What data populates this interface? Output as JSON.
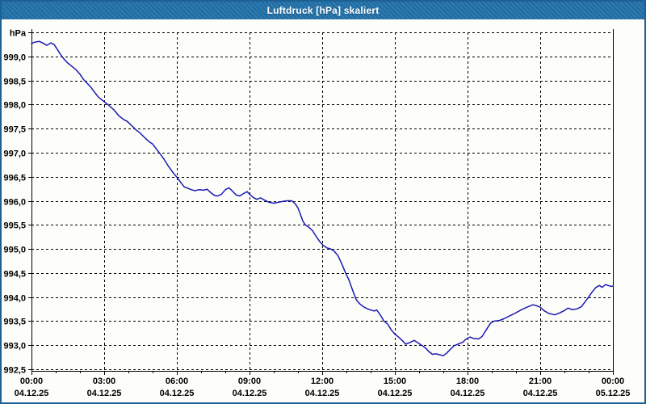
{
  "window": {
    "title": "Luftdruck [hPa] skaliert"
  },
  "colors": {
    "window_border": "#1d6094",
    "titlebar_bg": "#1f6fa8",
    "titlebar_text": "#ffffff",
    "plot_background": "#fdfdfa",
    "grid": "#000000",
    "series": "#1a1ab3"
  },
  "chart_data": {
    "type": "line",
    "title": "Luftdruck [hPa] skaliert",
    "unit_label": "hPa",
    "ylabel": "hPa",
    "xlabel": "",
    "ylim": [
      992.5,
      999.5
    ],
    "y_tick_step": 0.5,
    "y_tick_labels": [
      "hPa",
      "999,0",
      "998,5",
      "998,0",
      "997,5",
      "997,0",
      "996,5",
      "996,0",
      "995,5",
      "995,0",
      "994,5",
      "994,0",
      "993,5",
      "993,0",
      "992,5"
    ],
    "x_range_hours": [
      0,
      24
    ],
    "x_major_step_hours": 3,
    "x_minor_step_hours": 1,
    "grid": "dashed",
    "legend_position": "none",
    "x_ticks": [
      {
        "time": "00:00",
        "date": "04.12.25"
      },
      {
        "time": "03:00",
        "date": "04.12.25"
      },
      {
        "time": "06:00",
        "date": "04.12.25"
      },
      {
        "time": "09:00",
        "date": "04.12.25"
      },
      {
        "time": "12:00",
        "date": "04.12.25"
      },
      {
        "time": "15:00",
        "date": "04.12.25"
      },
      {
        "time": "18:00",
        "date": "04.12.25"
      },
      {
        "time": "21:00",
        "date": "04.12.25"
      },
      {
        "time": "00:00",
        "date": "05.12.25"
      }
    ],
    "points": [
      [
        0.0,
        999.27
      ],
      [
        0.17,
        999.3
      ],
      [
        0.33,
        999.31
      ],
      [
        0.5,
        999.27
      ],
      [
        0.63,
        999.23
      ],
      [
        0.8,
        999.28
      ],
      [
        0.93,
        999.25
      ],
      [
        1.05,
        999.16
      ],
      [
        1.2,
        999.04
      ],
      [
        1.35,
        998.94
      ],
      [
        1.5,
        998.86
      ],
      [
        1.65,
        998.8
      ],
      [
        1.8,
        998.74
      ],
      [
        2.0,
        998.63
      ],
      [
        2.15,
        998.52
      ],
      [
        2.3,
        998.44
      ],
      [
        2.45,
        998.36
      ],
      [
        2.6,
        998.26
      ],
      [
        2.75,
        998.16
      ],
      [
        2.9,
        998.1
      ],
      [
        3.05,
        998.04
      ],
      [
        3.2,
        997.98
      ],
      [
        3.4,
        997.89
      ],
      [
        3.6,
        997.77
      ],
      [
        3.8,
        997.69
      ],
      [
        3.95,
        997.65
      ],
      [
        4.1,
        997.58
      ],
      [
        4.3,
        997.48
      ],
      [
        4.5,
        997.4
      ],
      [
        4.7,
        997.3
      ],
      [
        4.85,
        997.23
      ],
      [
        5.0,
        997.18
      ],
      [
        5.15,
        997.08
      ],
      [
        5.3,
        996.98
      ],
      [
        5.45,
        996.88
      ],
      [
        5.65,
        996.72
      ],
      [
        5.85,
        996.58
      ],
      [
        6.0,
        996.49
      ],
      [
        6.15,
        996.39
      ],
      [
        6.3,
        996.29
      ],
      [
        6.45,
        996.26
      ],
      [
        6.6,
        996.23
      ],
      [
        6.75,
        996.21
      ],
      [
        6.9,
        996.23
      ],
      [
        7.1,
        996.22
      ],
      [
        7.25,
        996.24
      ],
      [
        7.4,
        996.17
      ],
      [
        7.55,
        996.11
      ],
      [
        7.7,
        996.1
      ],
      [
        7.85,
        996.14
      ],
      [
        8.0,
        996.23
      ],
      [
        8.15,
        996.27
      ],
      [
        8.3,
        996.2
      ],
      [
        8.45,
        996.12
      ],
      [
        8.6,
        996.1
      ],
      [
        8.75,
        996.15
      ],
      [
        8.9,
        996.19
      ],
      [
        9.0,
        996.14
      ],
      [
        9.15,
        996.07
      ],
      [
        9.3,
        996.03
      ],
      [
        9.45,
        996.06
      ],
      [
        9.6,
        996.02
      ],
      [
        9.8,
        995.97
      ],
      [
        10.0,
        995.95
      ],
      [
        10.2,
        995.97
      ],
      [
        10.4,
        995.99
      ],
      [
        10.55,
        996.0
      ],
      [
        10.75,
        996.0
      ],
      [
        10.9,
        995.93
      ],
      [
        11.0,
        995.85
      ],
      [
        11.1,
        995.72
      ],
      [
        11.2,
        995.58
      ],
      [
        11.3,
        995.5
      ],
      [
        11.45,
        995.45
      ],
      [
        11.6,
        995.38
      ],
      [
        11.75,
        995.26
      ],
      [
        11.9,
        995.15
      ],
      [
        12.05,
        995.07
      ],
      [
        12.2,
        995.02
      ],
      [
        12.35,
        995.0
      ],
      [
        12.5,
        994.95
      ],
      [
        12.65,
        994.86
      ],
      [
        12.8,
        994.7
      ],
      [
        12.95,
        994.52
      ],
      [
        13.1,
        994.36
      ],
      [
        13.25,
        994.15
      ],
      [
        13.4,
        993.95
      ],
      [
        13.55,
        993.86
      ],
      [
        13.7,
        993.8
      ],
      [
        13.85,
        993.76
      ],
      [
        14.0,
        993.73
      ],
      [
        14.15,
        993.71
      ],
      [
        14.25,
        993.73
      ],
      [
        14.4,
        993.63
      ],
      [
        14.55,
        993.5
      ],
      [
        14.7,
        993.44
      ],
      [
        14.85,
        993.32
      ],
      [
        15.0,
        993.23
      ],
      [
        15.15,
        993.17
      ],
      [
        15.3,
        993.1
      ],
      [
        15.45,
        993.02
      ],
      [
        15.6,
        993.05
      ],
      [
        15.8,
        993.1
      ],
      [
        15.95,
        993.05
      ],
      [
        16.1,
        993.0
      ],
      [
        16.25,
        992.95
      ],
      [
        16.4,
        992.87
      ],
      [
        16.55,
        992.81
      ],
      [
        16.7,
        992.82
      ],
      [
        16.85,
        992.8
      ],
      [
        17.0,
        992.78
      ],
      [
        17.15,
        992.84
      ],
      [
        17.3,
        992.92
      ],
      [
        17.45,
        992.99
      ],
      [
        17.6,
        993.02
      ],
      [
        17.8,
        993.06
      ],
      [
        17.95,
        993.13
      ],
      [
        18.1,
        993.17
      ],
      [
        18.25,
        993.14
      ],
      [
        18.45,
        993.13
      ],
      [
        18.6,
        993.18
      ],
      [
        18.75,
        993.3
      ],
      [
        18.95,
        993.46
      ],
      [
        19.1,
        993.5
      ],
      [
        19.3,
        993.51
      ],
      [
        19.5,
        993.55
      ],
      [
        19.7,
        993.6
      ],
      [
        19.95,
        993.66
      ],
      [
        20.2,
        993.73
      ],
      [
        20.45,
        993.79
      ],
      [
        20.7,
        993.84
      ],
      [
        20.85,
        993.82
      ],
      [
        21.0,
        993.79
      ],
      [
        21.15,
        993.72
      ],
      [
        21.35,
        993.66
      ],
      [
        21.6,
        993.63
      ],
      [
        21.8,
        993.67
      ],
      [
        22.0,
        993.72
      ],
      [
        22.15,
        993.77
      ],
      [
        22.3,
        993.74
      ],
      [
        22.5,
        993.75
      ],
      [
        22.7,
        993.8
      ],
      [
        22.85,
        993.9
      ],
      [
        23.0,
        994.0
      ],
      [
        23.15,
        994.11
      ],
      [
        23.3,
        994.2
      ],
      [
        23.45,
        994.24
      ],
      [
        23.55,
        994.2
      ],
      [
        23.7,
        994.26
      ],
      [
        23.8,
        994.24
      ],
      [
        23.95,
        994.22
      ],
      [
        24.0,
        994.23
      ]
    ]
  }
}
